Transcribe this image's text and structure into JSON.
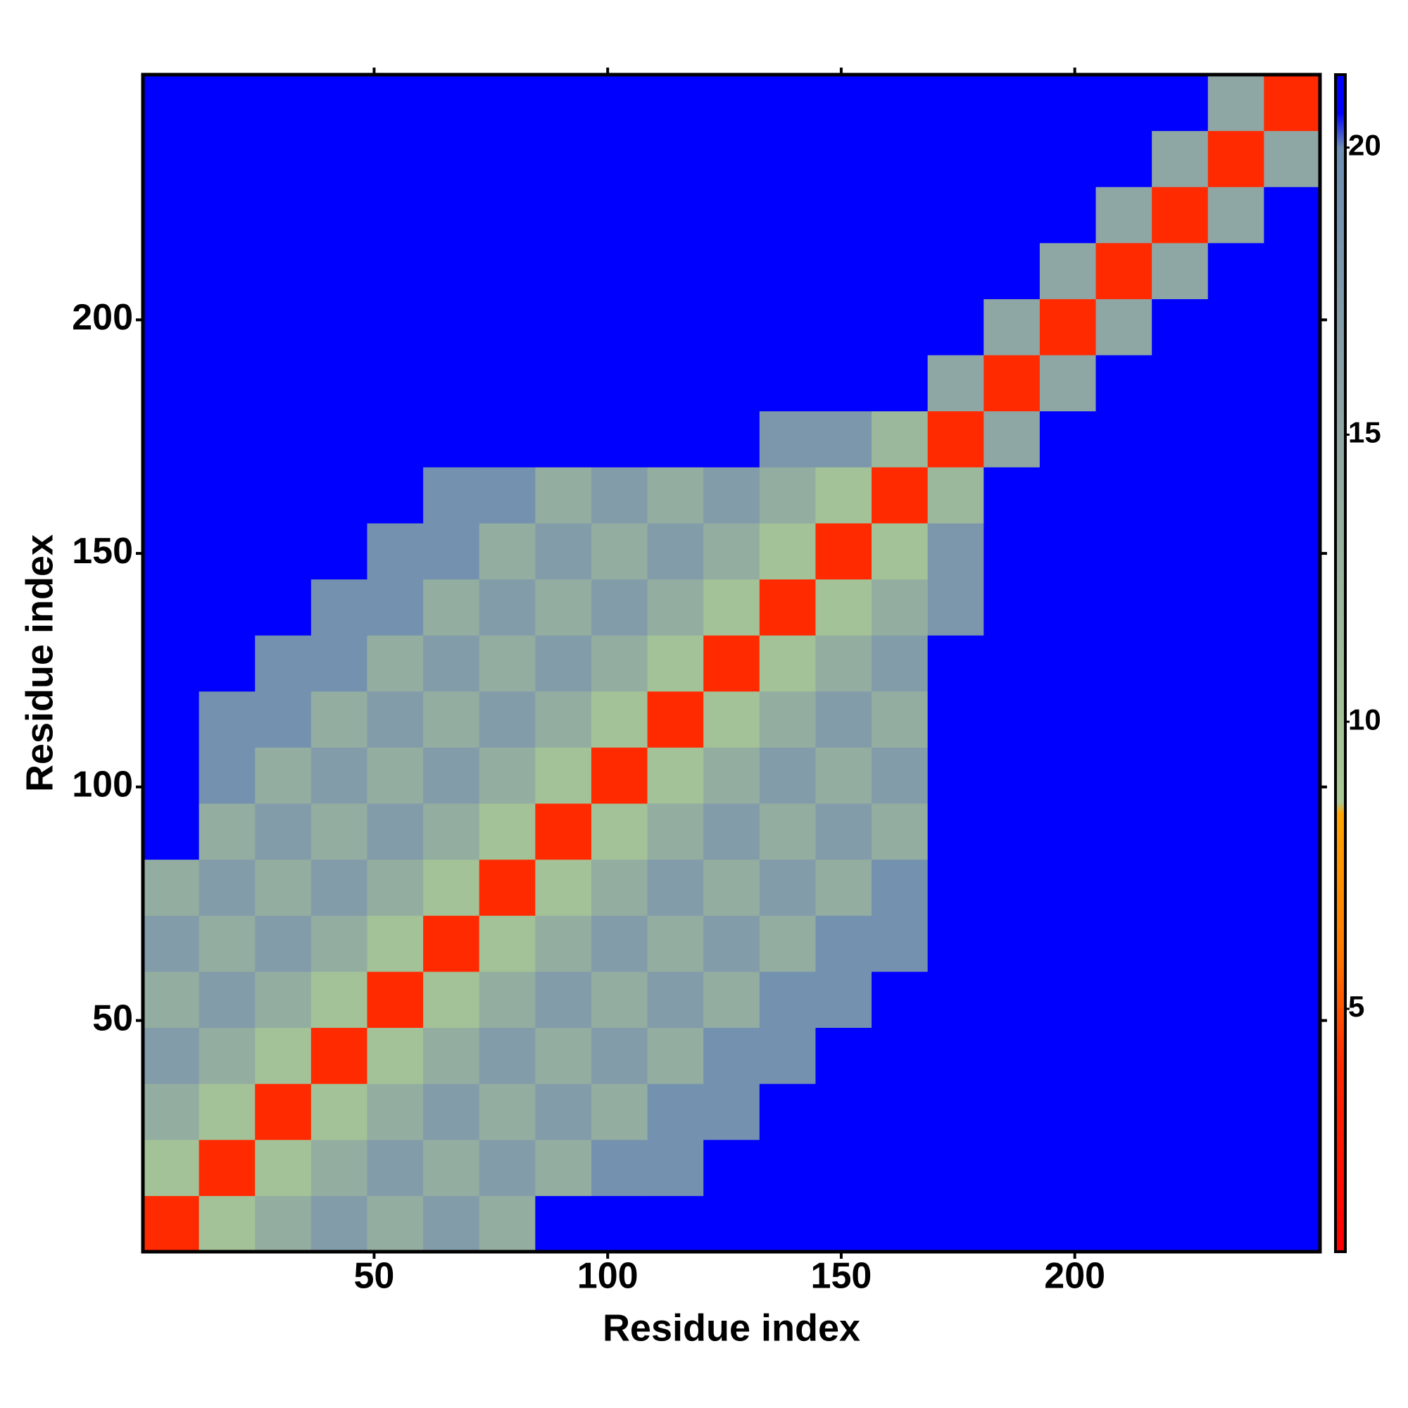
{
  "chart_data": {
    "type": "heatmap",
    "xlabel": "Residue index",
    "ylabel": "Residue index",
    "xbins": [
      0.5,
      12.5,
      24.5,
      36.5,
      48.5,
      60.5,
      72.5,
      84.5,
      96.5,
      108.5,
      120.5,
      132.5,
      144.5,
      156.5,
      168.5,
      180.5,
      192.5,
      204.5,
      216.5,
      228.5,
      240.5,
      252.5
    ],
    "ybins": [
      0.5,
      12.5,
      24.5,
      36.5,
      48.5,
      60.5,
      72.5,
      84.5,
      96.5,
      108.5,
      120.5,
      132.5,
      144.5,
      156.5,
      168.5,
      180.5,
      192.5,
      204.5,
      216.5,
      228.5,
      240.5,
      252.5
    ],
    "xlim": [
      0.5,
      252.5
    ],
    "ylim": [
      0.5,
      252.5
    ],
    "xticks": [
      50,
      100,
      150,
      200
    ],
    "yticks": [
      50,
      100,
      150,
      200
    ],
    "clim": [
      0.77,
      21.27
    ],
    "cticks": [
      5,
      10,
      15,
      20
    ],
    "colorscale": [
      [
        0.77,
        "#ff0000"
      ],
      [
        4,
        "#ff2a00"
      ],
      [
        6,
        "#ff7a00"
      ],
      [
        8.4,
        "#ffa500"
      ],
      [
        8.6,
        "#a9c995"
      ],
      [
        12,
        "#9cb89c"
      ],
      [
        16,
        "#8aa1a6"
      ],
      [
        20,
        "#6d8db2"
      ],
      [
        20.6,
        "#0000ff"
      ],
      [
        21.27,
        "#0000ff"
      ]
    ],
    "z": [
      [
        4,
        10,
        14,
        17,
        14,
        17,
        14,
        21,
        21,
        21,
        21,
        21,
        21,
        21,
        21,
        21,
        21,
        21,
        21,
        21,
        21
      ],
      [
        10,
        4,
        10,
        14,
        17,
        14,
        17,
        14,
        19,
        19,
        21,
        21,
        21,
        21,
        21,
        21,
        21,
        21,
        21,
        21,
        21
      ],
      [
        14,
        10,
        4,
        10,
        14,
        17,
        14,
        17,
        14,
        19,
        19,
        21,
        21,
        21,
        21,
        21,
        21,
        21,
        21,
        21,
        21
      ],
      [
        17,
        14,
        10,
        4,
        10,
        14,
        17,
        14,
        17,
        14,
        19,
        19,
        21,
        21,
        21,
        21,
        21,
        21,
        21,
        21,
        21
      ],
      [
        14,
        17,
        14,
        10,
        4,
        10,
        14,
        17,
        14,
        17,
        14,
        19,
        19,
        21,
        21,
        21,
        21,
        21,
        21,
        21,
        21
      ],
      [
        17,
        14,
        17,
        14,
        10,
        4,
        10,
        14,
        17,
        14,
        17,
        14,
        19,
        19,
        21,
        21,
        21,
        21,
        21,
        21,
        21
      ],
      [
        14,
        17,
        14,
        17,
        14,
        10,
        4,
        10,
        14,
        17,
        14,
        17,
        14,
        19,
        21,
        21,
        21,
        21,
        21,
        21,
        21
      ],
      [
        21,
        14,
        17,
        14,
        17,
        14,
        10,
        4,
        10,
        14,
        17,
        14,
        17,
        14,
        21,
        21,
        21,
        21,
        21,
        21,
        21
      ],
      [
        21,
        19,
        14,
        17,
        14,
        17,
        14,
        10,
        4,
        10,
        14,
        17,
        14,
        17,
        21,
        21,
        21,
        21,
        21,
        21,
        21
      ],
      [
        21,
        19,
        19,
        14,
        17,
        14,
        17,
        14,
        10,
        4,
        10,
        14,
        17,
        14,
        21,
        21,
        21,
        21,
        21,
        21,
        21
      ],
      [
        21,
        21,
        19,
        19,
        14,
        17,
        14,
        17,
        14,
        10,
        4,
        10,
        14,
        17,
        21,
        21,
        21,
        21,
        21,
        21,
        21
      ],
      [
        21,
        21,
        21,
        19,
        19,
        14,
        17,
        14,
        17,
        14,
        10,
        4,
        10,
        14,
        18,
        21,
        21,
        21,
        21,
        21,
        21
      ],
      [
        21,
        21,
        21,
        21,
        19,
        19,
        14,
        17,
        14,
        17,
        14,
        10,
        4,
        10,
        18,
        21,
        21,
        21,
        21,
        21,
        21
      ],
      [
        21,
        21,
        21,
        21,
        21,
        19,
        19,
        14,
        17,
        14,
        17,
        14,
        10,
        4,
        12,
        21,
        21,
        21,
        21,
        21,
        21
      ],
      [
        21,
        21,
        21,
        21,
        21,
        21,
        21,
        21,
        21,
        21,
        21,
        18,
        18,
        12,
        4,
        15,
        21,
        21,
        21,
        21,
        21
      ],
      [
        21,
        21,
        21,
        21,
        21,
        21,
        21,
        21,
        21,
        21,
        21,
        21,
        21,
        21,
        15,
        4,
        15,
        21,
        21,
        21,
        21
      ],
      [
        21,
        21,
        21,
        21,
        21,
        21,
        21,
        21,
        21,
        21,
        21,
        21,
        21,
        21,
        21,
        15,
        4,
        15,
        21,
        21,
        21
      ],
      [
        21,
        21,
        21,
        21,
        21,
        21,
        21,
        21,
        21,
        21,
        21,
        21,
        21,
        21,
        21,
        21,
        15,
        4,
        15,
        21,
        21
      ],
      [
        21,
        21,
        21,
        21,
        21,
        21,
        21,
        21,
        21,
        21,
        21,
        21,
        21,
        21,
        21,
        21,
        21,
        15,
        4,
        15,
        21
      ],
      [
        21,
        21,
        21,
        21,
        21,
        21,
        21,
        21,
        21,
        21,
        21,
        21,
        21,
        21,
        21,
        21,
        21,
        21,
        15,
        4,
        15
      ],
      [
        21,
        21,
        21,
        21,
        21,
        21,
        21,
        21,
        21,
        21,
        21,
        21,
        21,
        21,
        21,
        21,
        21,
        21,
        21,
        15,
        4
      ]
    ]
  }
}
